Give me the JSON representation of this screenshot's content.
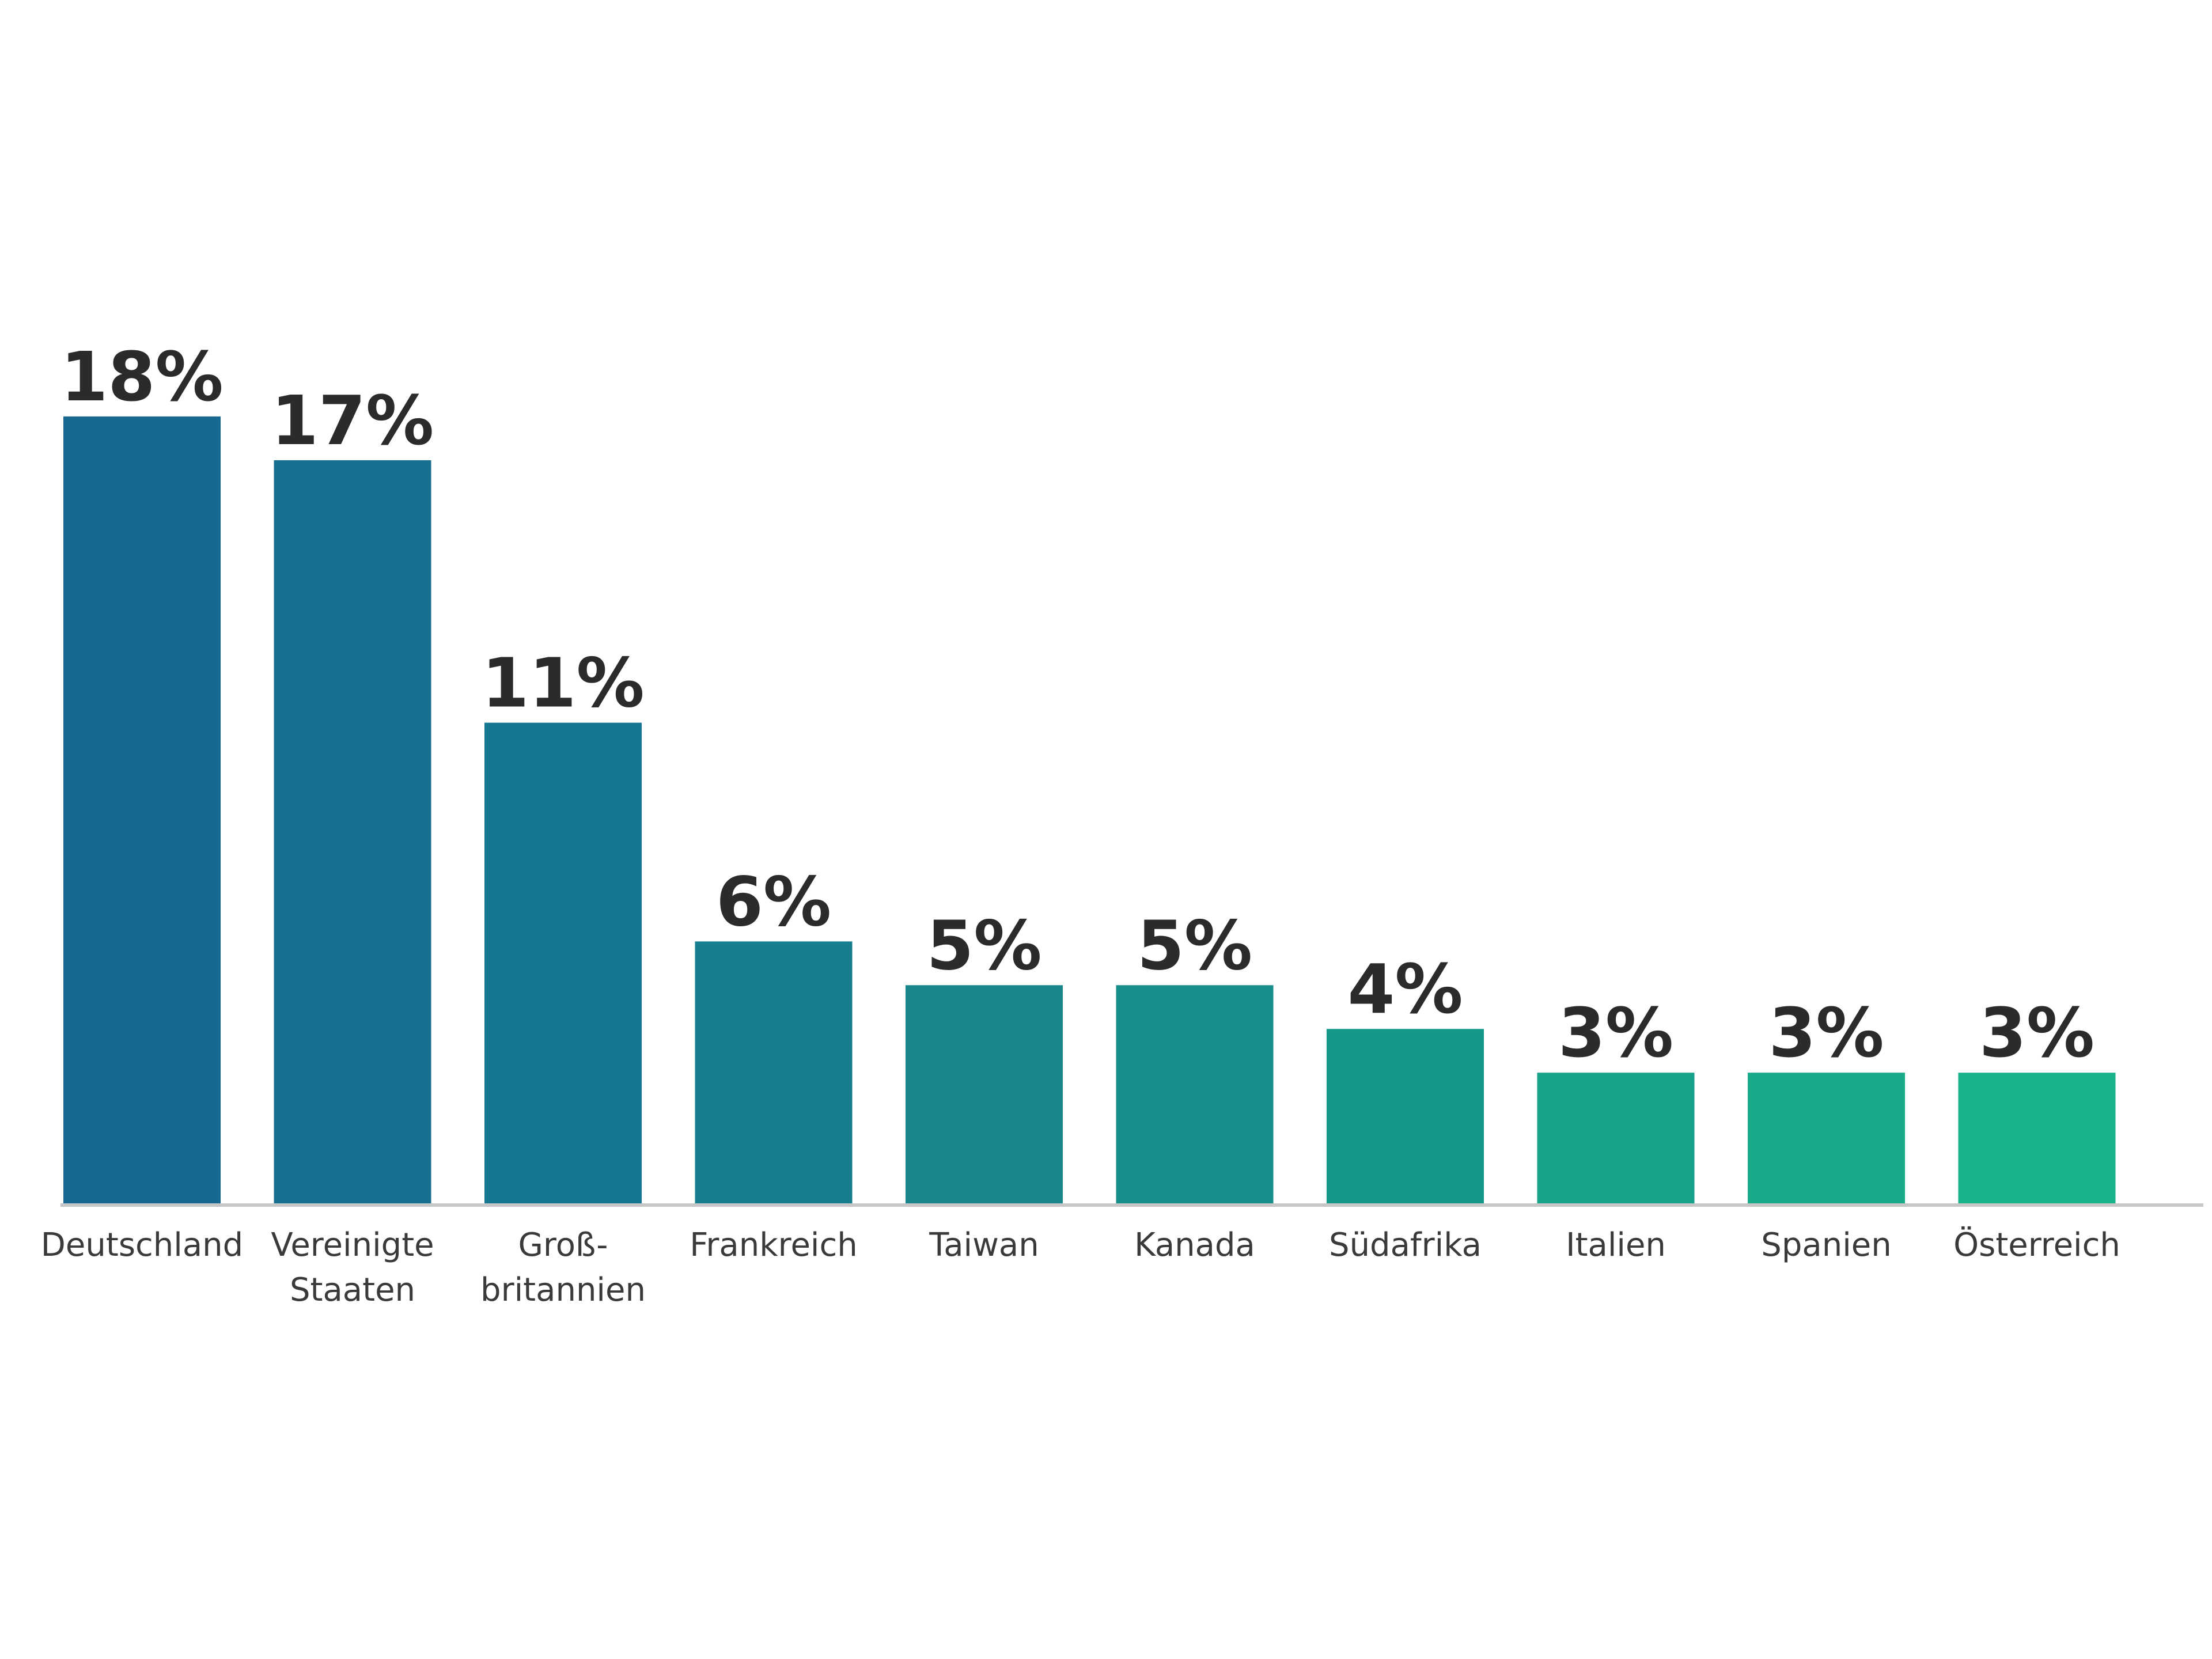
{
  "chart_data": {
    "type": "bar",
    "categories": [
      [
        "Deutschland"
      ],
      [
        "Vereinigte",
        "Staaten"
      ],
      [
        "Groß-",
        "britannien"
      ],
      [
        "Frankreich"
      ],
      [
        "Taiwan"
      ],
      [
        "Kanada"
      ],
      [
        "Südafrika"
      ],
      [
        "Italien"
      ],
      [
        "Spanien"
      ],
      [
        "Österreich"
      ]
    ],
    "values": [
      18,
      17,
      11,
      6,
      5,
      5,
      4,
      3,
      3,
      3
    ],
    "value_labels": [
      "18%",
      "17%",
      "11%",
      "6%",
      "5%",
      "5%",
      "4%",
      "3%",
      "3%",
      "3%"
    ],
    "ylim": [
      0,
      18
    ],
    "grid": false,
    "legend": "none",
    "colors": [
      "#166a91",
      "#176f92",
      "#177691",
      "#177e8f",
      "#17868d",
      "#178e8b",
      "#169889",
      "#17a389",
      "#18ab89",
      "#19b38b"
    ],
    "axis_color": "#c7c7c7"
  }
}
